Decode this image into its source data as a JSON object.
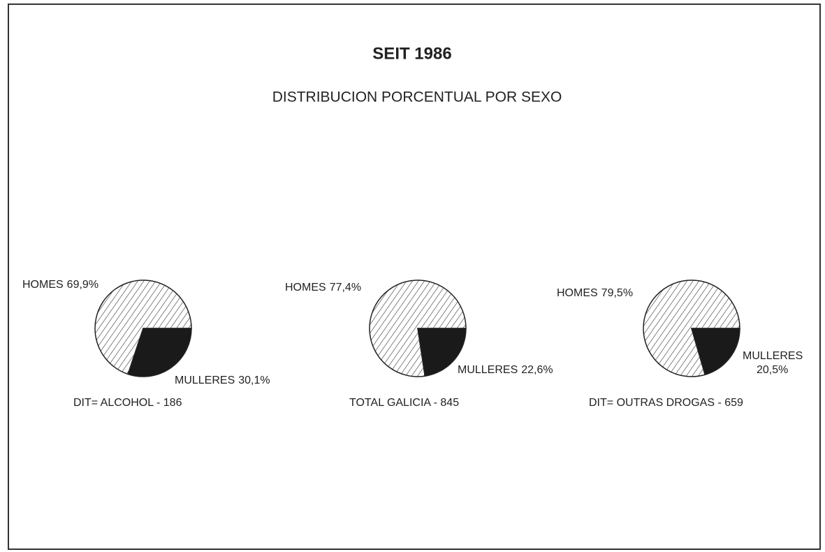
{
  "title": "SEIT 1986",
  "subtitle": "DISTRIBUCION PORCENTUAL POR SEXO",
  "chart_data": [
    {
      "type": "pie",
      "caption": "DIT= ALCOHOL - 186",
      "categories": [
        "HOMES",
        "MULLERES"
      ],
      "values": [
        69.9,
        30.1
      ],
      "value_labels": [
        "69,9%",
        "30,1%"
      ],
      "colors": [
        "#ffffff",
        "#1a1a1a"
      ],
      "patterns": [
        "hatch",
        "solid"
      ]
    },
    {
      "type": "pie",
      "caption": "TOTAL GALICIA - 845",
      "categories": [
        "HOMES",
        "MULLERES"
      ],
      "values": [
        77.4,
        22.6
      ],
      "value_labels": [
        "77,4%",
        "22,6%"
      ],
      "colors": [
        "#ffffff",
        "#1a1a1a"
      ],
      "patterns": [
        "hatch",
        "solid"
      ]
    },
    {
      "type": "pie",
      "caption": "DIT= OUTRAS DROGAS - 659",
      "categories": [
        "HOMES",
        "MULLERES"
      ],
      "values": [
        79.5,
        20.5
      ],
      "value_labels": [
        "79,5%",
        "20,5%"
      ],
      "colors": [
        "#ffffff",
        "#1a1a1a"
      ],
      "patterns": [
        "hatch",
        "solid"
      ]
    }
  ]
}
